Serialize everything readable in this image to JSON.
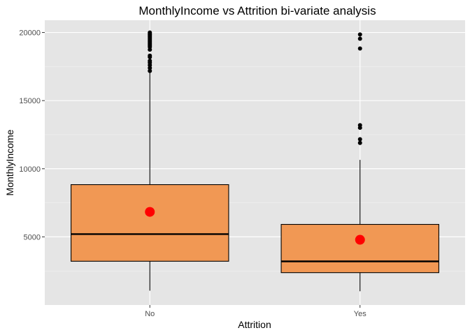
{
  "chart_data": {
    "type": "boxplot",
    "title": "MonthlyIncome vs Attrition bi-variate analysis",
    "xlabel": "Attrition",
    "ylabel": "MonthlyIncome",
    "ylim": [
      0,
      20900
    ],
    "yticks": [
      5000,
      10000,
      15000,
      20000
    ],
    "yticklabels": [
      "5000",
      "10000",
      "15000",
      "20000"
    ],
    "categories": [
      "No",
      "Yes"
    ],
    "grid": true,
    "colors": {
      "panel": "#e5e5e5",
      "grid_major": "#ffffff",
      "grid_minor": "#f2f2f2",
      "box_fill": "#f19854",
      "mean_marker": "#ff0000",
      "outlier": "#000000"
    },
    "boxes": [
      {
        "category": "No",
        "whisker_low": 1051,
        "q1": 3211,
        "median": 5204,
        "q3": 8834,
        "whisker_high": 17068,
        "mean": 6833,
        "outliers": [
          17181,
          17399,
          17603,
          17779,
          17924,
          18200,
          18300,
          18740,
          18950,
          19050,
          19150,
          19250,
          19350,
          19450,
          19550,
          19650,
          19740,
          19830,
          19900,
          19999
        ]
      },
      {
        "category": "Yes",
        "whisker_low": 1009,
        "q1": 2373,
        "median": 3202,
        "q3": 5916,
        "whisker_high": 10650,
        "mean": 4787,
        "outliers": [
          11900,
          12169,
          13008,
          13194,
          18824,
          19545,
          19859
        ]
      }
    ]
  }
}
